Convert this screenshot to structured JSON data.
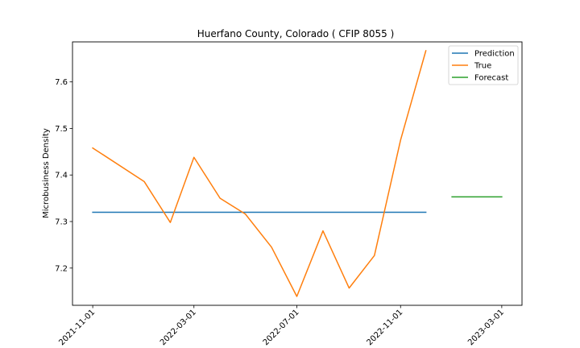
{
  "chart_data": {
    "type": "line",
    "title": "Huerfano County, Colorado ( CFIP 8055 )",
    "xlabel": "",
    "ylabel": "Microbusiness Density",
    "x_axis_type": "date",
    "xlim": [
      "2021-10-08",
      "2023-03-25"
    ],
    "ylim": [
      7.12,
      7.686
    ],
    "x_ticks": [
      "2021-11-01",
      "2022-03-01",
      "2022-07-01",
      "2022-11-01",
      "2023-03-01"
    ],
    "y_ticks": [
      7.2,
      7.3,
      7.4,
      7.5,
      7.6
    ],
    "y_tick_labels": [
      "7.2",
      "7.3",
      "7.4",
      "7.5",
      "7.6"
    ],
    "grid": false,
    "legend_position": "top-right",
    "series": [
      {
        "name": "Prediction",
        "color": "#1f77b4",
        "points": [
          {
            "x": "2021-11-01",
            "y": 7.32
          },
          {
            "x": "2022-12-01",
            "y": 7.32
          }
        ]
      },
      {
        "name": "True",
        "color": "#ff7f0e",
        "points": [
          {
            "x": "2021-11-01",
            "y": 7.458
          },
          {
            "x": "2022-01-01",
            "y": 7.386
          },
          {
            "x": "2022-02-01",
            "y": 7.298
          },
          {
            "x": "2022-03-01",
            "y": 7.438
          },
          {
            "x": "2022-04-01",
            "y": 7.35
          },
          {
            "x": "2022-05-01",
            "y": 7.316
          },
          {
            "x": "2022-06-01",
            "y": 7.245
          },
          {
            "x": "2022-07-01",
            "y": 7.139
          },
          {
            "x": "2022-08-01",
            "y": 7.28
          },
          {
            "x": "2022-09-01",
            "y": 7.157
          },
          {
            "x": "2022-10-01",
            "y": 7.227
          },
          {
            "x": "2022-11-01",
            "y": 7.475
          },
          {
            "x": "2022-12-01",
            "y": 7.667
          }
        ]
      },
      {
        "name": "Forecast",
        "color": "#2ca02c",
        "points": [
          {
            "x": "2023-01-01",
            "y": 7.353
          },
          {
            "x": "2023-03-01",
            "y": 7.353
          }
        ]
      }
    ]
  }
}
